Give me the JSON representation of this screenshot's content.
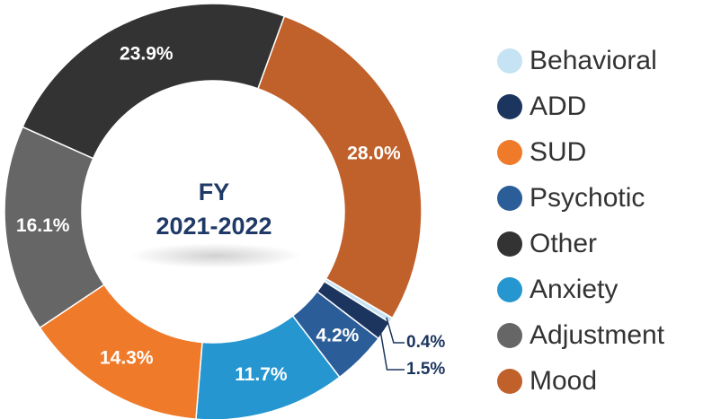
{
  "chart_data": {
    "type": "donut",
    "center_title": [
      "FY",
      "2021-2022"
    ],
    "categories": [
      "Behavioral",
      "ADD",
      "SUD",
      "Psychotic",
      "Other",
      "Anxiety",
      "Adjustment",
      "Mood"
    ],
    "values": [
      0.4,
      1.5,
      14.3,
      4.2,
      23.9,
      11.7,
      16.1,
      28.0
    ],
    "value_labels": [
      "0.4%",
      "1.5%",
      "14.3%",
      "4.2%",
      "23.9%",
      "11.7%",
      "16.1%",
      "28.0%"
    ],
    "colors": [
      "#c5e3f2",
      "#1b355e",
      "#ef7b2a",
      "#2b5d99",
      "#333333",
      "#2596cf",
      "#666666",
      "#c0602a"
    ],
    "legend": "right"
  }
}
